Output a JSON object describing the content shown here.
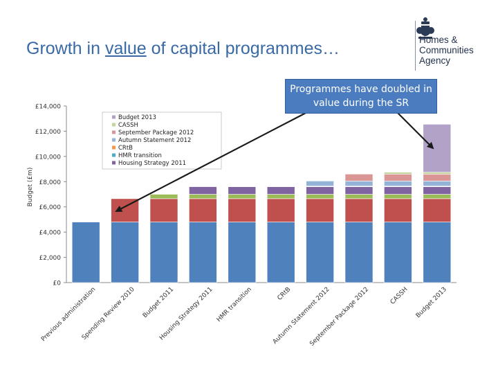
{
  "slide": {
    "title_before": "Growth in ",
    "title_underlined": "value",
    "title_after": " of capital programmes…"
  },
  "logo": {
    "icon": "royal-crest-icon",
    "line1": "Homes &",
    "line2": "Communities",
    "line3": "Agency"
  },
  "callout": {
    "text": "Programmes have doubled in value during the SR"
  },
  "chart_data": {
    "type": "bar",
    "stacked": true,
    "title": "",
    "xlabel": "",
    "ylabel": "Budget (£m)",
    "ylim": [
      0,
      14000
    ],
    "yticks": [
      0,
      2000,
      4000,
      6000,
      8000,
      10000,
      12000,
      14000
    ],
    "ytick_labels": [
      "£0",
      "£2,000",
      "£4,000",
      "£6,000",
      "£8,000",
      "£10,000",
      "£12,000",
      "£14,000"
    ],
    "grid": false,
    "legend_position": "top-center",
    "categories": [
      "Previous administration",
      "Spending Review 2010",
      "Budget 2011",
      "Housing Strategy 2011",
      "HMR transition",
      "CRtB",
      "Autumn Statement 2012",
      "September Package 2012",
      "CASSH",
      "Budget 2013"
    ],
    "series": [
      {
        "name": "Previous administration",
        "color": "#4f81bd",
        "values": [
          4800,
          4800,
          4800,
          4800,
          4800,
          4800,
          4800,
          4800,
          4800,
          4800
        ]
      },
      {
        "name": "Spending Review 2010",
        "color": "#c0504d",
        "values": [
          0,
          1850,
          1850,
          1850,
          1850,
          1850,
          1850,
          1850,
          1850,
          1850
        ]
      },
      {
        "name": "Budget 2011",
        "color": "#9bbb59",
        "values": [
          0,
          0,
          350,
          350,
          350,
          350,
          350,
          350,
          350,
          350
        ]
      },
      {
        "name": "Housing Strategy 2011",
        "color": "#8064a2",
        "values": [
          0,
          0,
          0,
          600,
          600,
          600,
          600,
          600,
          600,
          600
        ]
      },
      {
        "name": "HMR transition",
        "color": "#4bacc6",
        "values": [
          0,
          0,
          0,
          0,
          30,
          30,
          30,
          30,
          30,
          30
        ]
      },
      {
        "name": "CRtB",
        "color": "#f79646",
        "values": [
          0,
          0,
          0,
          0,
          0,
          20,
          20,
          20,
          20,
          20
        ]
      },
      {
        "name": "Autumn Statement 2012",
        "color": "#95b3d7",
        "values": [
          0,
          0,
          0,
          0,
          0,
          0,
          400,
          400,
          400,
          400
        ]
      },
      {
        "name": "September Package 2012",
        "color": "#d99694",
        "values": [
          0,
          0,
          0,
          0,
          0,
          0,
          0,
          550,
          550,
          550
        ]
      },
      {
        "name": "CASSH",
        "color": "#c3d69b",
        "values": [
          0,
          0,
          0,
          0,
          0,
          0,
          0,
          0,
          150,
          150
        ]
      },
      {
        "name": "Budget 2013",
        "color": "#b3a2c7",
        "values": [
          0,
          0,
          0,
          0,
          0,
          0,
          0,
          0,
          0,
          3800
        ]
      }
    ],
    "legend_entries": [
      "Budget 2013",
      "CASSH",
      "September Package 2012",
      "Autumn Statement 2012",
      "CRtB",
      "HMR transition",
      "Housing Strategy 2011"
    ]
  }
}
